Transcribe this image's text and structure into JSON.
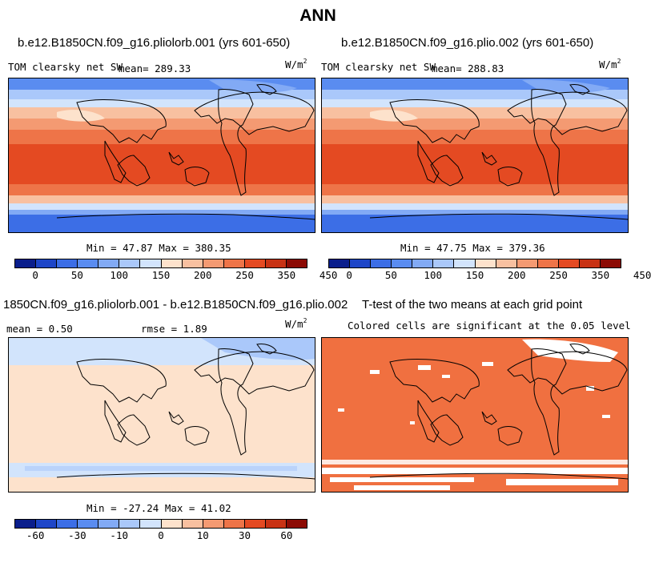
{
  "page_title": "ANN",
  "panels": [
    {
      "title": "b.e12.B1850CN.f09_g16.pliolorb.001 (yrs 601-650)",
      "variable": "TOM clearsky net SW",
      "mean_text": "mean= 289.33",
      "unit": "W/m",
      "unit_exp": "2",
      "minmax_text": "Min = 47.87 Max = 380.35",
      "colorbar_labels": [
        "0",
        "50",
        "100",
        "150",
        "200",
        "250",
        "350",
        "450"
      ]
    },
    {
      "title": "b.e12.B1850CN.f09_g16.plio.002 (yrs 601-650)",
      "variable": "TOM clearsky net SW",
      "mean_text": "mean= 288.83",
      "unit": "W/m",
      "unit_exp": "2",
      "minmax_text": "Min = 47.75 Max = 379.36",
      "colorbar_labels": [
        "0",
        "50",
        "100",
        "150",
        "200",
        "250",
        "350",
        "450"
      ]
    },
    {
      "title": "1850CN.f09_g16.pliolorb.001 - b.e12.B1850CN.f09_g16.plio.002",
      "mean_text": "mean = 0.50",
      "rmse_text": "rmse = 1.89",
      "unit": "W/m",
      "unit_exp": "2",
      "minmax_text": "Min = -27.24 Max = 41.02",
      "colorbar_labels": [
        "-60",
        "-30",
        "-10",
        "0",
        "10",
        "30",
        "60"
      ]
    },
    {
      "title": "T-test of the two means at each grid point",
      "subtitle": "Colored cells are significant at the 0.05 level"
    }
  ],
  "colors": {
    "abs_scale": [
      "#0a1e8c",
      "#1e46c8",
      "#3c6ee6",
      "#5a8cf0",
      "#82aaf5",
      "#aac8fa",
      "#d2e4fc",
      "#fde2cc",
      "#f8c0a0",
      "#f49a72",
      "#ee7448",
      "#e44a22",
      "#c83214",
      "#8c0a04"
    ],
    "diff_scale": [
      "#0a1e8c",
      "#1e46c8",
      "#3c6ee6",
      "#5a8cf0",
      "#82aaf5",
      "#aac8fa",
      "#d2e4fc",
      "#fde2cc",
      "#f8c0a0",
      "#f49a72",
      "#ee7448",
      "#e44a22",
      "#c83214",
      "#8c0a04"
    ],
    "significance": "#f07040"
  }
}
